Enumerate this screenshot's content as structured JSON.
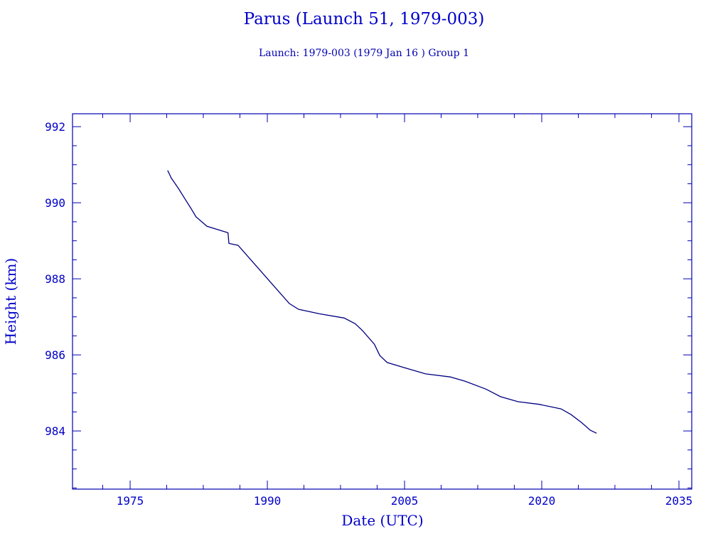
{
  "chart_data": {
    "type": "line",
    "title": "Parus (Launch 51, 1979-003)",
    "subtitle": "Launch: 1979-003  (1979 Jan 16 )  Group 1",
    "xlabel": "Date (UTC)",
    "ylabel": "Height (km)",
    "xlim": [
      1968.7,
      2036.4
    ],
    "ylim": [
      982.47,
      992.34
    ],
    "xticks": [
      1975,
      1990,
      2005,
      2020,
      2035
    ],
    "yticks": [
      984,
      986,
      988,
      990,
      992
    ],
    "grid": false,
    "color": "#000080",
    "axis_color": "#0000b0",
    "series": [
      {
        "x": [
          1979.1,
          1979.2,
          1979.5,
          1980.3,
          1981.0,
          1981.6,
          1982.2,
          1983.4,
          1985.7,
          1985.8,
          1986.8,
          1992.4,
          1993.4,
          1995.7,
          1998.4,
          1999.6,
          2000.4,
          2001.7,
          2002.3,
          2003.1,
          2005.0,
          2007.3,
          2010.0,
          2011.6,
          2013.9,
          2015.5,
          2017.4,
          2019.7,
          2022.1,
          2023.2,
          2024.4,
          2025.3,
          2026.0
        ],
        "y": [
          990.85,
          990.8,
          990.65,
          990.37,
          990.1,
          989.87,
          989.63,
          989.38,
          989.21,
          988.93,
          988.88,
          987.35,
          987.2,
          987.08,
          986.97,
          986.82,
          986.64,
          986.28,
          985.98,
          985.8,
          985.66,
          985.5,
          985.42,
          985.31,
          985.1,
          984.9,
          984.77,
          984.7,
          984.58,
          984.43,
          984.21,
          984.02,
          983.94
        ]
      }
    ]
  }
}
